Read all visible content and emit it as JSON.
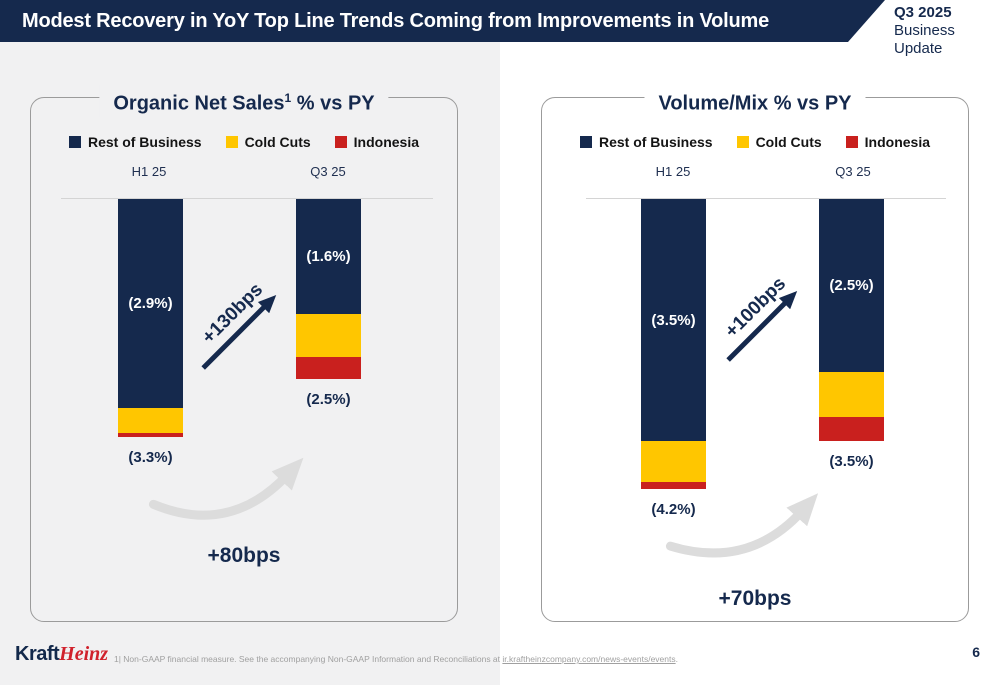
{
  "header": {
    "title": "Modest Recovery in YoY Top Line Trends Coming from Improvements in Volume",
    "badge": {
      "line1": "Q3 2025",
      "line2": "Business Update"
    }
  },
  "chart_data": [
    {
      "type": "bar",
      "title": "Organic Net Sales¹ % vs PY",
      "title_main": "Organic Net Sales",
      "title_sup": "1",
      "title_rest": " % vs PY",
      "categories": [
        "H1 25",
        "Q3 25"
      ],
      "series": [
        {
          "name": "Rest of Business",
          "color": "#15294d",
          "values": [
            -2.9,
            -1.6
          ]
        },
        {
          "name": "Cold Cuts",
          "color": "#ffc600",
          "values": [
            -0.35,
            -0.6
          ]
        },
        {
          "name": "Indonesia",
          "color": "#c9201e",
          "values": [
            -0.05,
            -0.3
          ]
        }
      ],
      "segment_labels": [
        "(2.9%)",
        "(1.6%)"
      ],
      "totals": [
        "(3.3%)",
        "(2.5%)"
      ],
      "trend_label": "+130bps",
      "improvement_label": "+80bps",
      "ylim": [
        -4.5,
        0
      ],
      "grid": false,
      "legend_position": "top"
    },
    {
      "type": "bar",
      "title": "Volume/Mix % vs PY",
      "title_main": "Volume/Mix % vs PY",
      "title_sup": "",
      "title_rest": "",
      "categories": [
        "H1 25",
        "Q3 25"
      ],
      "series": [
        {
          "name": "Rest of Business",
          "color": "#15294d",
          "values": [
            -3.5,
            -2.5
          ]
        },
        {
          "name": "Cold Cuts",
          "color": "#ffc600",
          "values": [
            -0.6,
            -0.65
          ]
        },
        {
          "name": "Indonesia",
          "color": "#c9201e",
          "values": [
            -0.1,
            -0.35
          ]
        }
      ],
      "segment_labels": [
        "(3.5%)",
        "(2.5%)"
      ],
      "totals": [
        "(4.2%)",
        "(3.5%)"
      ],
      "trend_label": "+100bps",
      "improvement_label": "+70bps",
      "ylim": [
        -4.5,
        0
      ],
      "grid": false,
      "legend_position": "top"
    }
  ],
  "colors": {
    "navy": "#15294d",
    "yellow": "#ffc600",
    "red": "#c9201e",
    "panel_border": "#9b9b9b",
    "gray_arrow": "#dcdcdc",
    "left_background": "#f1f1f2"
  },
  "footer": {
    "logo_kraft": "Kraft",
    "logo_heinz": "Heinz",
    "footnote_prefix": "1| Non-GAAP financial measure. See the accompanying Non-GAAP Information and Reconciliations at ",
    "footnote_link": "ir.kraftheinzcompany.com/news-events/events",
    "footnote_suffix": ".",
    "page_number": "6"
  }
}
